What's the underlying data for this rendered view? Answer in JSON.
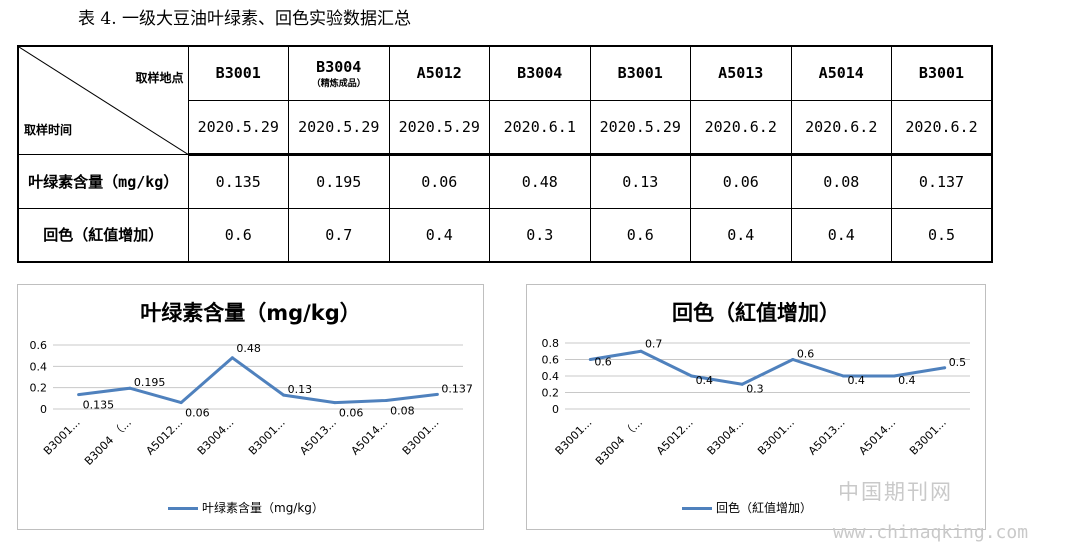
{
  "caption": "表 4. 一级大豆油叶绿素、回色实验数据汇总",
  "table": {
    "corner_top": "取样地点",
    "corner_bottom": "取样时间",
    "sites": [
      "B3001",
      "B3004",
      "A5012",
      "B3004",
      "B3001",
      "A5013",
      "A5014",
      "B3001"
    ],
    "site_sub": [
      "",
      "（精炼成品）",
      "",
      "",
      "",
      "",
      "",
      ""
    ],
    "dates": [
      "2020.5.29",
      "2020.5.29",
      "2020.5.29",
      "2020.6.1",
      "2020.5.29",
      "2020.6.2",
      "2020.6.2",
      "2020.6.2"
    ],
    "rows": [
      {
        "label": "叶绿素含量（mg/kg）",
        "values": [
          "0.135",
          "0.195",
          "0.06",
          "0.48",
          "0.13",
          "0.06",
          "0.08",
          "0.137"
        ]
      },
      {
        "label": "回色（紅值增加）",
        "values": [
          "0.6",
          "0.7",
          "0.4",
          "0.3",
          "0.6",
          "0.4",
          "0.4",
          "0.5"
        ]
      }
    ]
  },
  "chart_data": [
    {
      "type": "line",
      "title": "叶绿素含量（mg/kg）",
      "categories": [
        "B3001...",
        "B3004 （...",
        "A5012...",
        "B3004...",
        "B3001...",
        "A5013...",
        "A5014...",
        "B3001..."
      ],
      "series": [
        {
          "name": "叶绿素含量（mg/kg）",
          "values": [
            0.135,
            0.195,
            0.06,
            0.48,
            0.13,
            0.06,
            0.08,
            0.137
          ]
        }
      ],
      "data_labels": [
        "0.135",
        "0.195",
        "0.06",
        "0.48",
        "0.13",
        "0.06",
        "0.08",
        "0.137"
      ],
      "yticks": [
        "0.6",
        "0.4",
        "0.2",
        "0"
      ],
      "ylim": [
        0,
        0.6
      ],
      "grid": true,
      "legend": "bottom",
      "color": "#4f81bd"
    },
    {
      "type": "line",
      "title": "回色（紅值增加）",
      "categories": [
        "B3001...",
        "B3004 （...",
        "A5012...",
        "B3004...",
        "B3001...",
        "A5013...",
        "A5014...",
        "B3001..."
      ],
      "series": [
        {
          "name": "回色（紅值增加）",
          "values": [
            0.6,
            0.7,
            0.4,
            0.3,
            0.6,
            0.4,
            0.4,
            0.5
          ]
        }
      ],
      "data_labels": [
        "0.6",
        "0.7",
        "0.4",
        "0.3",
        "0.6",
        "0.4",
        "0.4",
        "0.5"
      ],
      "yticks": [
        "0.8",
        "0.6",
        "0.4",
        "0.2",
        "0"
      ],
      "ylim": [
        0,
        0.8
      ],
      "grid": true,
      "legend": "bottom",
      "color": "#4f81bd"
    }
  ],
  "watermark": {
    "line1": "中国期刊网",
    "line2": "www.chinaqking.com"
  }
}
